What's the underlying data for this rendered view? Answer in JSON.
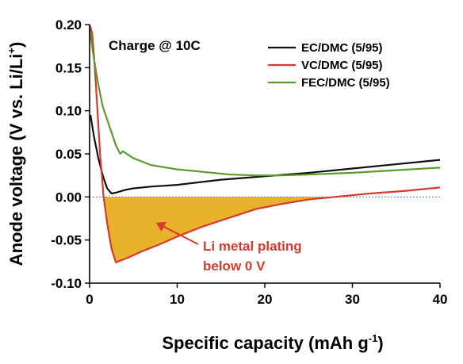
{
  "chart_data": {
    "type": "line",
    "annotation_title": "Charge @ 10C",
    "xlabel": "Specific capacity (mAh g",
    "xlabel_sup": "-1",
    "xlabel_end": ")",
    "ylabel": "Anode voltage (V vs. Li/Li",
    "ylabel_sup": "+",
    "ylabel_end": ")",
    "xlim": [
      0,
      40
    ],
    "ylim": [
      -0.1,
      0.2
    ],
    "xticks": [
      0,
      10,
      20,
      30,
      40
    ],
    "yticks": [
      0.2,
      0.15,
      0.1,
      0.05,
      0.0,
      -0.05,
      -0.1
    ],
    "ytick_labels": [
      "0.20",
      "0.15",
      "0.10",
      "0.05",
      "0.00",
      "-0.05",
      "-0.10"
    ],
    "reference_line_y": 0.0,
    "reference_line_color": "#4a6fd8",
    "grid": false,
    "legend_position": "top-right",
    "series": [
      {
        "name": "EC/DMC (5/95)",
        "color": "#111111",
        "x": [
          0.1,
          0.5,
          1.0,
          1.5,
          2.0,
          2.5,
          3.0,
          4.0,
          5.0,
          7.0,
          10.0,
          15.0,
          20.0,
          25.0,
          30.0,
          35.0,
          40.0
        ],
        "y": [
          0.095,
          0.07,
          0.045,
          0.025,
          0.01,
          0.004,
          0.005,
          0.008,
          0.01,
          0.012,
          0.014,
          0.02,
          0.024,
          0.028,
          0.033,
          0.038,
          0.043
        ]
      },
      {
        "name": "VC/DMC (5/95)",
        "color": "#d63a2e",
        "x": [
          0.0,
          0.3,
          0.6,
          0.9,
          1.2,
          1.6,
          2.0,
          2.5,
          3.0,
          3.5,
          4.5,
          6.0,
          8.0,
          10.0,
          13.0,
          16.0,
          19.0,
          22.0,
          25.0,
          28.0,
          32.0,
          36.0,
          40.0
        ],
        "y": [
          0.22,
          0.19,
          0.15,
          0.1,
          0.05,
          0.0,
          -0.03,
          -0.06,
          -0.076,
          -0.074,
          -0.07,
          -0.063,
          -0.055,
          -0.046,
          -0.034,
          -0.024,
          -0.014,
          -0.008,
          -0.003,
          0.0,
          0.004,
          0.007,
          0.011
        ]
      },
      {
        "name": "FEC/DMC (5/95)",
        "color": "#5b9b2d",
        "x": [
          0.0,
          0.5,
          1.0,
          1.5,
          2.0,
          2.5,
          3.0,
          3.5,
          3.8,
          5.0,
          7.0,
          10.0,
          13.0,
          16.0,
          19.0,
          22.0,
          25.0,
          30.0,
          35.0,
          40.0
        ],
        "y": [
          0.195,
          0.16,
          0.13,
          0.105,
          0.09,
          0.075,
          0.06,
          0.05,
          0.053,
          0.045,
          0.037,
          0.032,
          0.029,
          0.026,
          0.025,
          0.025,
          0.026,
          0.028,
          0.031,
          0.034
        ]
      }
    ],
    "shaded_region": {
      "label_line1": "Li metal plating",
      "label_line2": "below 0 V",
      "color": "#e8b22a",
      "label_color": "#d63a2e",
      "arrow_to": [
        7.6,
        -0.03
      ]
    }
  }
}
